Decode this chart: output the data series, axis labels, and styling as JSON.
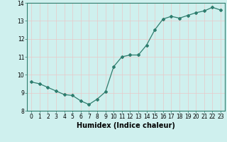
{
  "x": [
    0,
    1,
    2,
    3,
    4,
    5,
    6,
    7,
    8,
    9,
    10,
    11,
    12,
    13,
    14,
    15,
    16,
    17,
    18,
    19,
    20,
    21,
    22,
    23
  ],
  "y": [
    9.6,
    9.5,
    9.3,
    9.1,
    8.9,
    8.85,
    8.55,
    8.35,
    8.65,
    9.05,
    10.45,
    11.0,
    11.1,
    11.1,
    11.65,
    12.5,
    13.1,
    13.25,
    13.15,
    13.3,
    13.45,
    13.55,
    13.75,
    13.6
  ],
  "line_color": "#2e7d6e",
  "marker": "D",
  "marker_size": 2.0,
  "linewidth": 0.9,
  "xlabel": "Humidex (Indice chaleur)",
  "xlabel_fontsize": 7,
  "xlabel_bold": true,
  "ylim": [
    8,
    14
  ],
  "xlim": [
    -0.5,
    23.5
  ],
  "yticks": [
    8,
    9,
    10,
    11,
    12,
    13,
    14
  ],
  "xticks": [
    0,
    1,
    2,
    3,
    4,
    5,
    6,
    7,
    8,
    9,
    10,
    11,
    12,
    13,
    14,
    15,
    16,
    17,
    18,
    19,
    20,
    21,
    22,
    23
  ],
  "tick_fontsize": 5.5,
  "bg_color": "#cff0ee",
  "grid_color_h": "#e8c8c8",
  "grid_color_v": "#e8c8c8",
  "grid_linewidth": 0.5,
  "spine_color": "#2e7d6e"
}
